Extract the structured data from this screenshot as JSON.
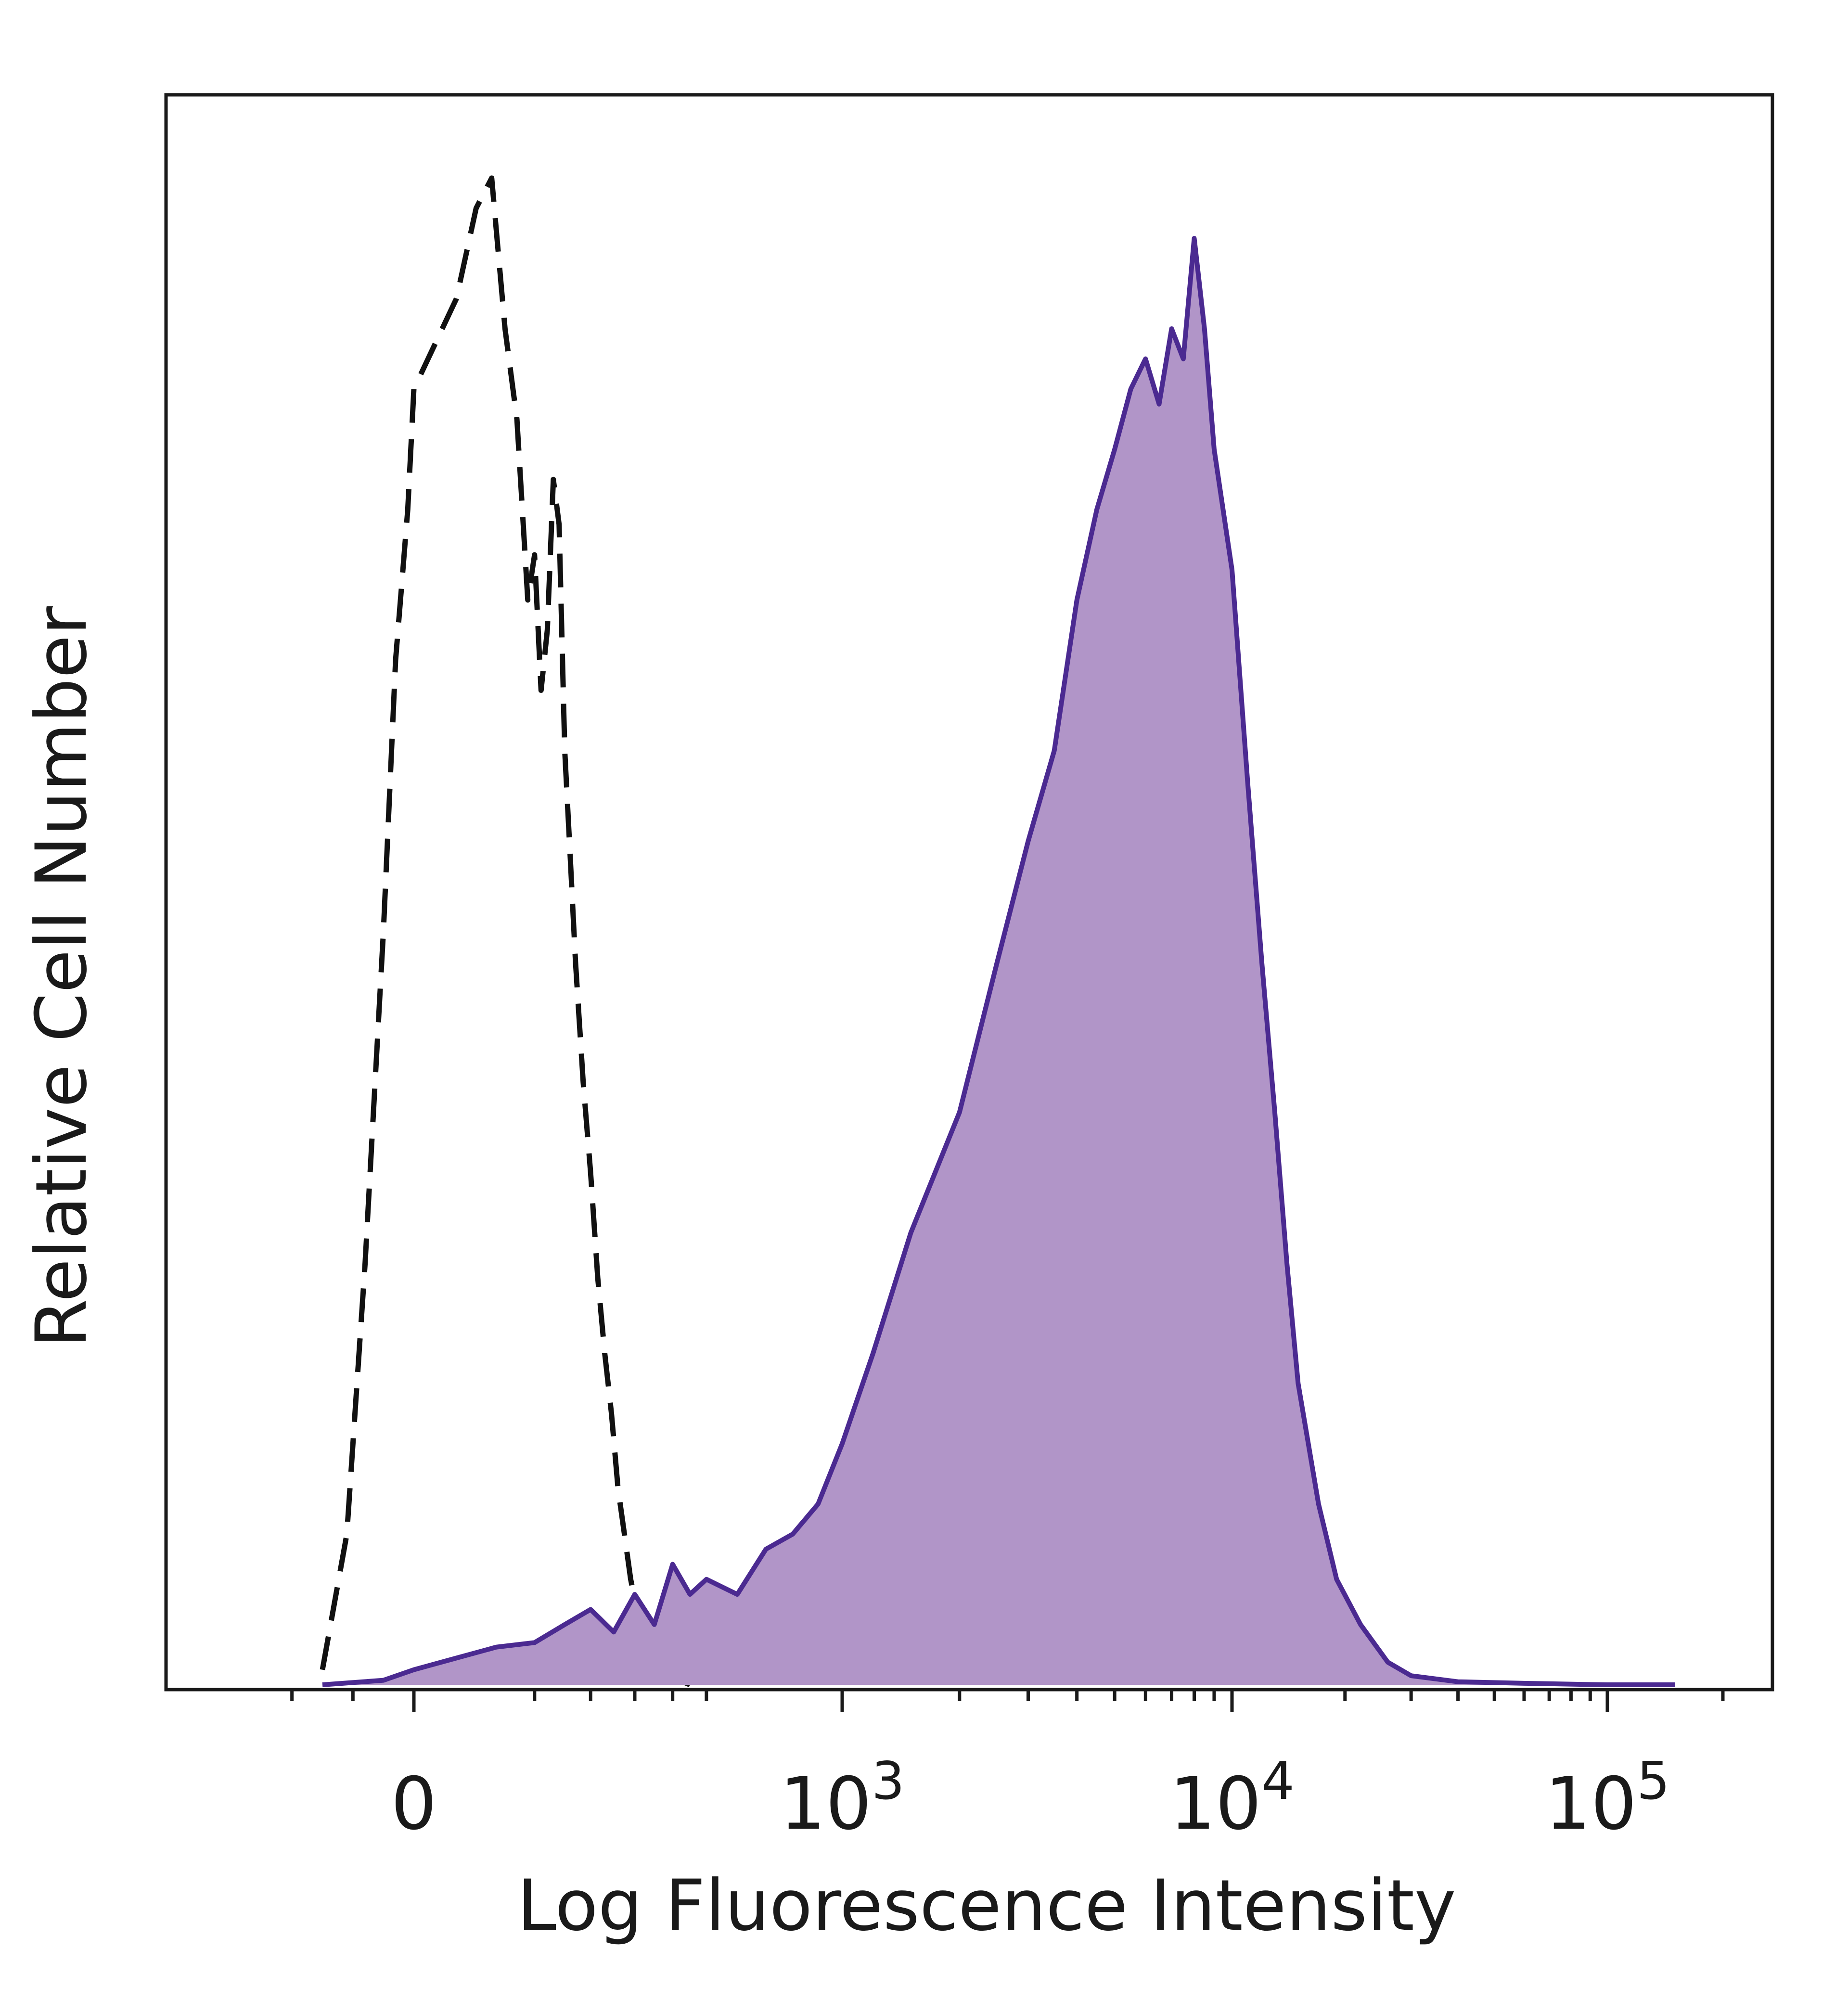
{
  "chart_data": {
    "type": "area",
    "xlabel": "Log Fluorescence Intensity",
    "ylabel": "Relative Cell Number",
    "x_scale": "biexponential",
    "xlim": [
      -300,
      200000
    ],
    "ylim": [
      0,
      1
    ],
    "grid": false,
    "legend": "none",
    "x_tick_labels": [
      {
        "value": 0,
        "base": "0",
        "exp": ""
      },
      {
        "value": 1000,
        "base": "10",
        "exp": "3"
      },
      {
        "value": 10000,
        "base": "10",
        "exp": "4"
      },
      {
        "value": 100000,
        "base": "10",
        "exp": "5"
      }
    ],
    "series": [
      {
        "style": "dashed outline",
        "color": "#111111",
        "x": [
          -150,
          -110,
          -80,
          -50,
          -30,
          -10,
          0,
          15,
          30,
          45,
          60,
          75,
          90,
          100,
          110,
          120,
          130,
          140,
          150,
          160,
          170,
          185,
          200,
          215,
          230,
          245,
          260,
          275,
          290,
          305,
          320,
          335,
          350,
          370,
          390,
          420,
          450
        ],
        "values": [
          0.01,
          0.1,
          0.28,
          0.5,
          0.68,
          0.78,
          0.86,
          0.92,
          0.98,
          1.0,
          0.9,
          0.84,
          0.72,
          0.75,
          0.66,
          0.7,
          0.8,
          0.77,
          0.62,
          0.55,
          0.48,
          0.4,
          0.34,
          0.27,
          0.22,
          0.18,
          0.13,
          0.1,
          0.07,
          0.05,
          0.04,
          0.03,
          0.02,
          0.012,
          0.006,
          0.003,
          0.0
        ]
      },
      {
        "style": "filled",
        "color": "#4b2a91",
        "fill": "#b195c8",
        "x": [
          -150,
          -50,
          0,
          50,
          100,
          150,
          200,
          250,
          300,
          350,
          400,
          450,
          500,
          600,
          700,
          800,
          900,
          1000,
          1200,
          1500,
          2000,
          2500,
          3000,
          3500,
          4000,
          4500,
          5000,
          5500,
          6000,
          6500,
          7000,
          7500,
          8000,
          8500,
          9000,
          10000,
          11000,
          12000,
          13000,
          14000,
          15000,
          17000,
          19000,
          22000,
          26000,
          30000,
          40000,
          60000,
          100000,
          150000
        ],
        "values": [
          0.0,
          0.003,
          0.01,
          0.025,
          0.028,
          0.04,
          0.05,
          0.035,
          0.06,
          0.04,
          0.08,
          0.06,
          0.07,
          0.06,
          0.09,
          0.1,
          0.12,
          0.16,
          0.22,
          0.3,
          0.38,
          0.48,
          0.56,
          0.62,
          0.72,
          0.78,
          0.82,
          0.86,
          0.88,
          0.85,
          0.9,
          0.88,
          0.96,
          0.9,
          0.82,
          0.74,
          0.6,
          0.48,
          0.38,
          0.28,
          0.2,
          0.12,
          0.07,
          0.04,
          0.015,
          0.006,
          0.002,
          0.001,
          0.0,
          0.0
        ]
      }
    ]
  }
}
